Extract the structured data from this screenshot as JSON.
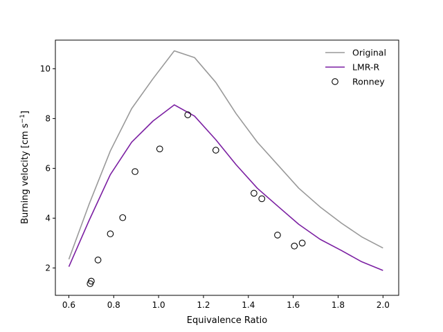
{
  "chart_data": {
    "type": "line",
    "title": "",
    "xlabel": "Equivalence Ratio",
    "ylabel_main": "Burning velocity [cm s",
    "ylabel_sup": "−1",
    "ylabel_close": "]",
    "xlim": [
      0.54,
      2.07
    ],
    "ylim": [
      0.9,
      11.15
    ],
    "xticks": [
      0.6,
      0.8,
      1.0,
      1.2,
      1.4,
      1.6,
      1.8,
      2.0
    ],
    "xtick_labels": [
      "0.6",
      "0.8",
      "1.0",
      "1.2",
      "1.4",
      "1.6",
      "1.8",
      "2.0"
    ],
    "yticks": [
      2,
      4,
      6,
      8,
      10
    ],
    "ytick_labels": [
      "2",
      "4",
      "6",
      "8",
      "10"
    ],
    "grid": false,
    "legend_position": "top-right",
    "series": [
      {
        "name": "Original",
        "kind": "line",
        "color": "#999999",
        "x": [
          0.6,
          0.69,
          0.785,
          0.88,
          0.975,
          1.07,
          1.16,
          1.255,
          1.345,
          1.44,
          1.535,
          1.625,
          1.72,
          1.815,
          1.905,
          2.0
        ],
        "y": [
          2.35,
          4.55,
          6.7,
          8.4,
          9.6,
          10.72,
          10.45,
          9.45,
          8.2,
          7.05,
          6.1,
          5.2,
          4.45,
          3.8,
          3.25,
          2.8
        ]
      },
      {
        "name": "LMR-R",
        "kind": "line",
        "color": "#7b1fa2",
        "x": [
          0.6,
          0.69,
          0.785,
          0.88,
          0.975,
          1.07,
          1.16,
          1.255,
          1.345,
          1.44,
          1.535,
          1.625,
          1.72,
          1.815,
          1.905,
          2.0
        ],
        "y": [
          2.05,
          3.9,
          5.75,
          7.05,
          7.9,
          8.55,
          8.1,
          7.15,
          6.15,
          5.2,
          4.45,
          3.75,
          3.15,
          2.7,
          2.25,
          1.9
        ]
      },
      {
        "name": "Ronney",
        "kind": "scatter",
        "color": "#000000",
        "x": [
          0.695,
          0.7,
          0.73,
          0.785,
          0.84,
          0.895,
          1.005,
          1.13,
          1.255,
          1.425,
          1.46,
          1.53,
          1.605,
          1.64
        ],
        "y": [
          1.37,
          1.47,
          2.32,
          3.37,
          4.02,
          5.87,
          6.78,
          8.15,
          6.73,
          5.0,
          4.78,
          3.32,
          2.88,
          3.0
        ]
      }
    ]
  }
}
